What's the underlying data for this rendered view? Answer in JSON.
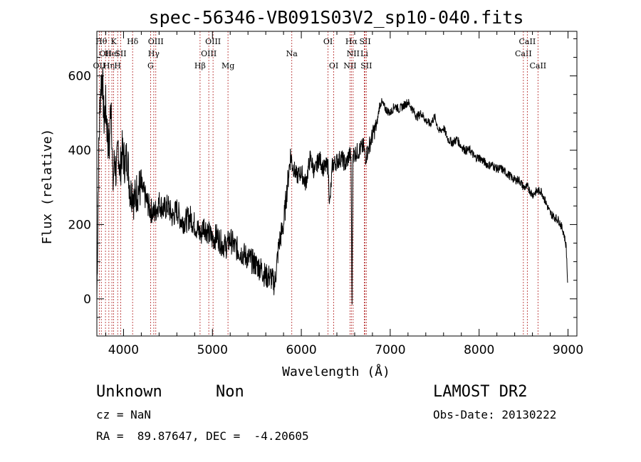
{
  "chart_data": {
    "type": "line",
    "title": "spec-56346-VB091S03V2_sp10-040.fits",
    "xlabel": "Wavelength (Å)",
    "ylabel": "Flux (relative)",
    "xlim": [
      3700,
      9100
    ],
    "ylim": [
      -100,
      720
    ],
    "xticks": [
      4000,
      5000,
      6000,
      7000,
      8000,
      9000
    ],
    "yticks": [
      0,
      200,
      400,
      600
    ],
    "line_color": "#000000",
    "marker_color": "#b22222",
    "series": [
      {
        "x": [
          3700,
          3720,
          3740,
          3760,
          3780,
          3800,
          3820,
          3840,
          3860,
          3880,
          3900,
          3920,
          3940,
          3960,
          3980,
          4000,
          4020,
          4040,
          4060,
          4080,
          4100,
          4120,
          4150,
          4200,
          4250,
          4300,
          4350,
          4400,
          4450,
          4500,
          4550,
          4600,
          4650,
          4700,
          4750,
          4800,
          4850,
          4870,
          4900,
          4950,
          5000,
          5050,
          5100,
          5150,
          5200,
          5250,
          5300,
          5350,
          5400,
          5450,
          5500,
          5550,
          5600,
          5650,
          5700,
          5750,
          5800,
          5850,
          5880,
          5900,
          5950,
          6000,
          6050,
          6100,
          6150,
          6200,
          6250,
          6300,
          6320,
          6350,
          6400,
          6450,
          6500,
          6540,
          6560,
          6570,
          6580,
          6600,
          6650,
          6700,
          6720,
          6750,
          6800,
          6850,
          6880,
          6900,
          6950,
          7000,
          7050,
          7100,
          7150,
          7200,
          7250,
          7300,
          7350,
          7400,
          7450,
          7500,
          7550,
          7600,
          7650,
          7700,
          7750,
          7800,
          7850,
          7900,
          7950,
          8000,
          8050,
          8100,
          8150,
          8200,
          8250,
          8300,
          8350,
          8400,
          8450,
          8500,
          8550,
          8600,
          8650,
          8700,
          8750,
          8800,
          8850,
          8900,
          8950,
          8980,
          9000
        ],
        "y": [
          0,
          380,
          560,
          610,
          480,
          520,
          440,
          400,
          560,
          300,
          380,
          330,
          420,
          330,
          400,
          380,
          360,
          390,
          330,
          280,
          300,
          260,
          290,
          300,
          270,
          240,
          230,
          260,
          240,
          250,
          220,
          240,
          210,
          210,
          220,
          200,
          180,
          170,
          200,
          180,
          160,
          170,
          150,
          140,
          160,
          140,
          130,
          120,
          110,
          100,
          90,
          80,
          60,
          60,
          40,
          150,
          200,
          320,
          390,
          360,
          330,
          340,
          310,
          380,
          340,
          380,
          350,
          360,
          250,
          360,
          370,
          380,
          360,
          390,
          380,
          -40,
          390,
          390,
          400,
          410,
          380,
          400,
          440,
          470,
          520,
          530,
          510,
          500,
          520,
          510,
          520,
          530,
          510,
          490,
          500,
          480,
          470,
          490,
          450,
          460,
          430,
          420,
          430,
          410,
          400,
          400,
          380,
          380,
          370,
          360,
          360,
          350,
          350,
          340,
          330,
          320,
          320,
          300,
          300,
          280,
          290,
          290,
          260,
          230,
          220,
          210,
          180,
          140,
          20
        ]
      }
    ],
    "lines": [
      {
        "x": 3727,
        "label": "OII",
        "row": 3
      },
      {
        "x": 3750,
        "label": "Hθ",
        "row": 1
      },
      {
        "x": 3797,
        "label": "OII",
        "row": 2
      },
      {
        "x": 3835,
        "label": "Hη",
        "row": 3
      },
      {
        "x": 3869,
        "label": "HeI",
        "row": 2
      },
      {
        "x": 3889,
        "label": "K",
        "row": 1
      },
      {
        "x": 3934,
        "label": "H",
        "row": 3
      },
      {
        "x": 3968,
        "label": "SII",
        "row": 2
      },
      {
        "x": 4102,
        "label": "Hδ",
        "row": 1
      },
      {
        "x": 4304,
        "label": "G",
        "row": 3
      },
      {
        "x": 4340,
        "label": "Hγ",
        "row": 2
      },
      {
        "x": 4363,
        "label": "OIII",
        "row": 1
      },
      {
        "x": 4861,
        "label": "Hβ",
        "row": 3
      },
      {
        "x": 4959,
        "label": "OIII",
        "row": 2
      },
      {
        "x": 5007,
        "label": "OIII",
        "row": 1
      },
      {
        "x": 5175,
        "label": "Mg",
        "row": 3
      },
      {
        "x": 5893,
        "label": "Na",
        "row": 2
      },
      {
        "x": 6300,
        "label": "OI",
        "row": 1
      },
      {
        "x": 6364,
        "label": "OI",
        "row": 3
      },
      {
        "x": 6548,
        "label": "NII",
        "row": 3
      },
      {
        "x": 6563,
        "label": "Hα",
        "row": 1
      },
      {
        "x": 6583,
        "label": "NII",
        "row": 2
      },
      {
        "x": 6708,
        "label": "Li",
        "row": 2
      },
      {
        "x": 6717,
        "label": "SII",
        "row": 1
      },
      {
        "x": 6731,
        "label": "SII",
        "row": 3
      },
      {
        "x": 8498,
        "label": "CaII",
        "row": 2
      },
      {
        "x": 8542,
        "label": "CaII",
        "row": 1
      },
      {
        "x": 8662,
        "label": "CaII",
        "row": 3
      }
    ]
  },
  "info": {
    "class": "Unknown",
    "subclass": "Non",
    "survey": "LAMOST DR2",
    "cz": "cz = NaN",
    "obs_date": "Obs-Date: 20130222",
    "radec": "RA =  89.87647, DEC =  -4.20605"
  }
}
